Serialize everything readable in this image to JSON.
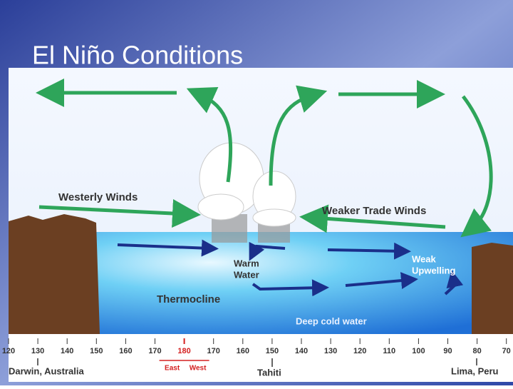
{
  "title": "El Niño Conditions",
  "labels": {
    "westerly_winds": "Westerly Winds",
    "weaker_trade_winds": "Weaker Trade Winds",
    "warm_water": [
      "Warm",
      "Water"
    ],
    "thermocline": "Thermocline",
    "weak_upwelling": [
      "Weak",
      "Upwelling"
    ],
    "deep_cold_water": "Deep cold water"
  },
  "scale": {
    "longitudes_west": [
      120,
      130,
      140,
      150,
      160,
      170
    ],
    "date_line": 180,
    "longitudes_east": [
      170,
      160,
      150,
      140,
      130,
      120,
      110,
      100,
      90,
      80,
      70
    ],
    "east": "East",
    "west": "West"
  },
  "locations": {
    "darwin": "Darwin, Australia",
    "tahiti": "Tahiti",
    "lima": "Lima, Peru"
  }
}
